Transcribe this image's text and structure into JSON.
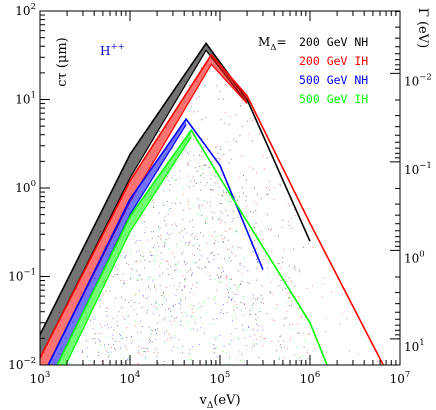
{
  "chart_data": {
    "type": "scatter",
    "title": "",
    "annotation": {
      "text": "H++",
      "base": "H",
      "sup": "++",
      "color": "#0000cc"
    },
    "xlabel": {
      "base": "v",
      "sub": "Δ",
      "rest": "(eV)"
    },
    "ylabel": "cτ (μm)",
    "ylabel_right": "Γ (eV)",
    "x_scale": "log",
    "y_scale": "log",
    "xlim": [
      1000,
      10000000
    ],
    "ylim": [
      0.01,
      100
    ],
    "grid": false,
    "x_ticks": [
      {
        "value": 1000,
        "base": "10",
        "exp": "3"
      },
      {
        "value": 10000,
        "base": "10",
        "exp": "4"
      },
      {
        "value": 100000,
        "base": "10",
        "exp": "5"
      },
      {
        "value": 1000000,
        "base": "10",
        "exp": "6"
      },
      {
        "value": 10000000,
        "base": "10",
        "exp": "7"
      }
    ],
    "y_ticks": [
      {
        "value": 0.01,
        "base": "10",
        "exp": "−2"
      },
      {
        "value": 0.1,
        "base": "10",
        "exp": "−1"
      },
      {
        "value": 1,
        "base": "10",
        "exp": "0"
      },
      {
        "value": 10,
        "base": "10",
        "exp": "1"
      },
      {
        "value": 100,
        "base": "10",
        "exp": "2"
      }
    ],
    "y_right_ticks": [
      {
        "gamma": 0.01,
        "base": "10",
        "exp": "−2"
      },
      {
        "gamma": 0.1,
        "base": "10",
        "exp": "−1"
      },
      {
        "gamma": 1,
        "base": "10",
        "exp": "0"
      },
      {
        "gamma": 10,
        "base": "10",
        "exp": "1"
      }
    ],
    "legend": {
      "placement": "top-right",
      "header": {
        "base": "M",
        "sub": "Δ",
        "rest": "="
      }
    },
    "series": [
      {
        "name": "200 GeV NH",
        "color": "#000000",
        "peak": {
          "x": 70000,
          "y": 43
        },
        "band_upper": [
          [
            1000,
            0.022
          ],
          [
            10000,
            2.4
          ],
          [
            70000,
            43
          ],
          [
            200000,
            10
          ],
          [
            1000000,
            0.25
          ]
        ],
        "band_lower": [
          [
            1000,
            0.012
          ],
          [
            10000,
            1.3
          ],
          [
            70000,
            36
          ],
          [
            200000,
            9
          ]
        ]
      },
      {
        "name": "200 GeV IH",
        "color": "#ff0000",
        "peak": {
          "x": 80000,
          "y": 32
        },
        "band_upper": [
          [
            1000,
            0.012
          ],
          [
            10000,
            1.2
          ],
          [
            80000,
            32
          ],
          [
            200000,
            11
          ],
          [
            1000000,
            0.4
          ],
          [
            6500000,
            0.01
          ]
        ],
        "band_lower": [
          [
            1000,
            0.0065
          ],
          [
            10000,
            0.7
          ],
          [
            80000,
            25
          ],
          [
            200000,
            9
          ]
        ]
      },
      {
        "name": "500 GeV NH",
        "color": "#0000ff",
        "peak": {
          "x": 42000,
          "y": 6
        },
        "band_upper": [
          [
            1000,
            0.0065
          ],
          [
            10000,
            0.75
          ],
          [
            42000,
            6
          ],
          [
            100000,
            1.8
          ],
          [
            300000,
            0.12
          ]
        ],
        "band_lower": [
          [
            1000,
            0.004
          ],
          [
            10000,
            0.5
          ],
          [
            42000,
            5.2
          ]
        ]
      },
      {
        "name": "500 GeV IH",
        "color": "#00ff00",
        "peak": {
          "x": 48000,
          "y": 4.5
        },
        "band_upper": [
          [
            1000,
            0.004
          ],
          [
            10000,
            0.48
          ],
          [
            48000,
            4.5
          ],
          [
            100000,
            1.3
          ],
          [
            1000000,
            0.03
          ],
          [
            1550000,
            0.01
          ]
        ],
        "band_lower": [
          [
            1000,
            0.0025
          ],
          [
            10000,
            0.32
          ],
          [
            48000,
            3.8
          ]
        ]
      }
    ]
  }
}
